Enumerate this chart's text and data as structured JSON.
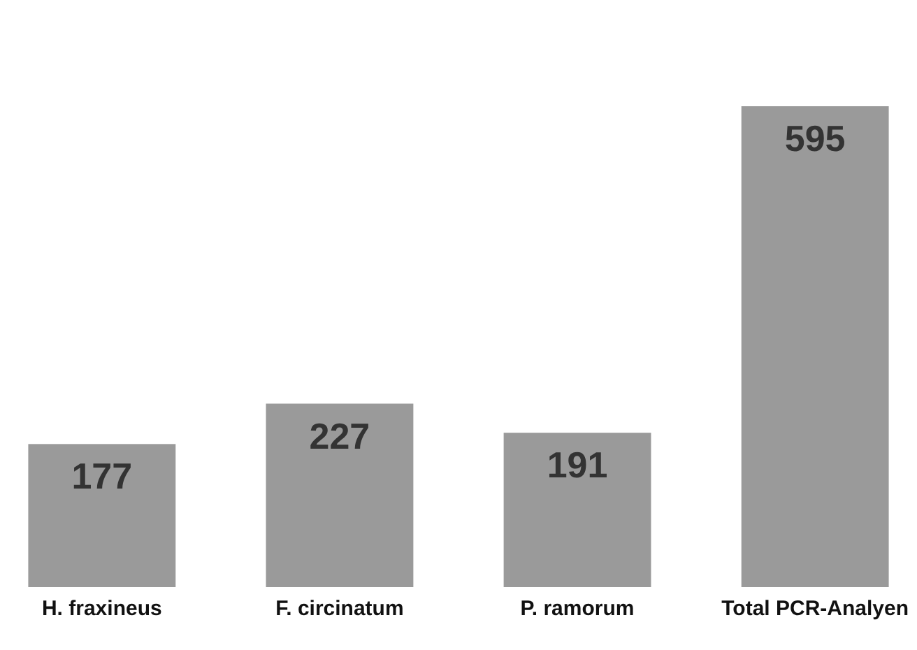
{
  "chart_data": {
    "type": "bar",
    "categories": [
      "H. fraxineus",
      "F. circinatum",
      "P. ramorum",
      "Total PCR-Analyen"
    ],
    "values": [
      177,
      227,
      191,
      595
    ],
    "color": "#9a9a9a",
    "data_labels": true
  }
}
